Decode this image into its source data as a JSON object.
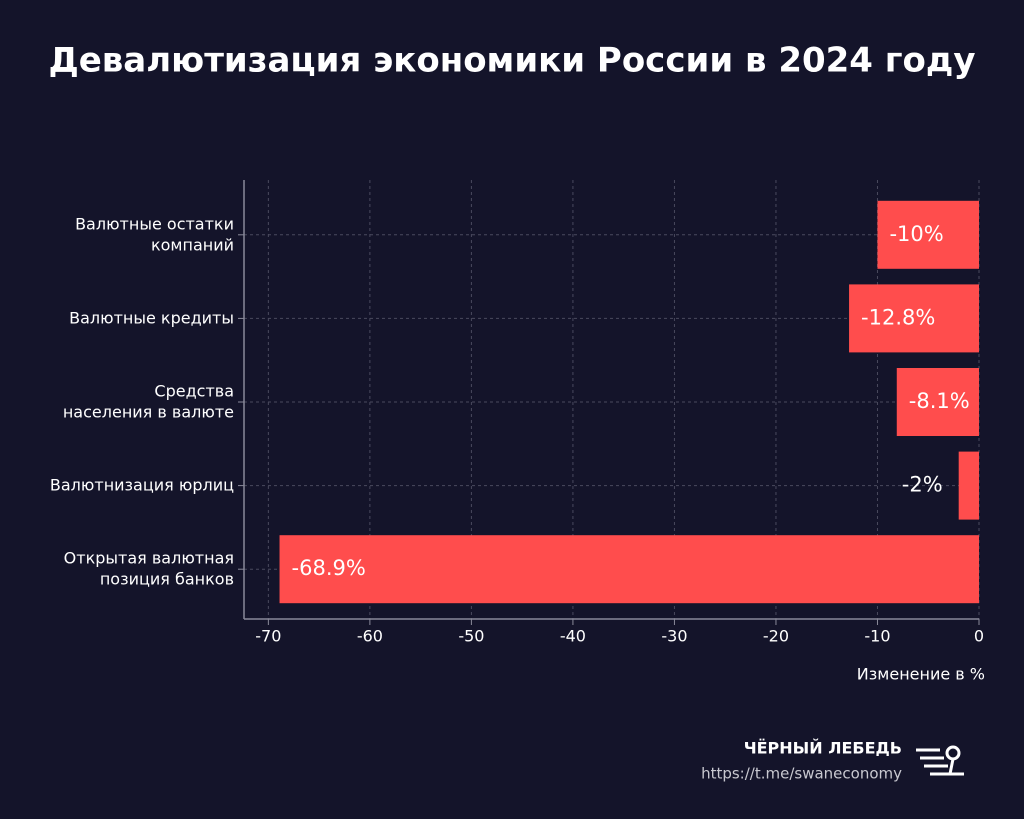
{
  "chart_data": {
    "type": "barh",
    "title": "Девалютизация экономики России в 2024 году",
    "categories": [
      [
        "Валютные остатки",
        "компаний"
      ],
      [
        "Валютные кредиты"
      ],
      [
        "Средства",
        "населения в валюте"
      ],
      [
        "Валютнизация юрлиц"
      ],
      [
        "Открытая валютная",
        "позиция банков"
      ]
    ],
    "values": [
      -10,
      -12.8,
      -8.1,
      -2,
      -68.9
    ],
    "value_labels": [
      "-10%",
      "-12.8%",
      "-8.1%",
      "-2%",
      "-68.9%"
    ],
    "color": "#ff4d4d",
    "xlim": [
      -72.4,
      0
    ],
    "xticks": [
      -70,
      -60,
      -50,
      -40,
      -30,
      -20,
      -10,
      0
    ],
    "xlabel": "Изменение в %",
    "grid": true
  },
  "footer": {
    "brand": "ЧЁРНЫЙ ЛЕБЕДЬ",
    "link": "https://t.me/swaneconomy"
  }
}
